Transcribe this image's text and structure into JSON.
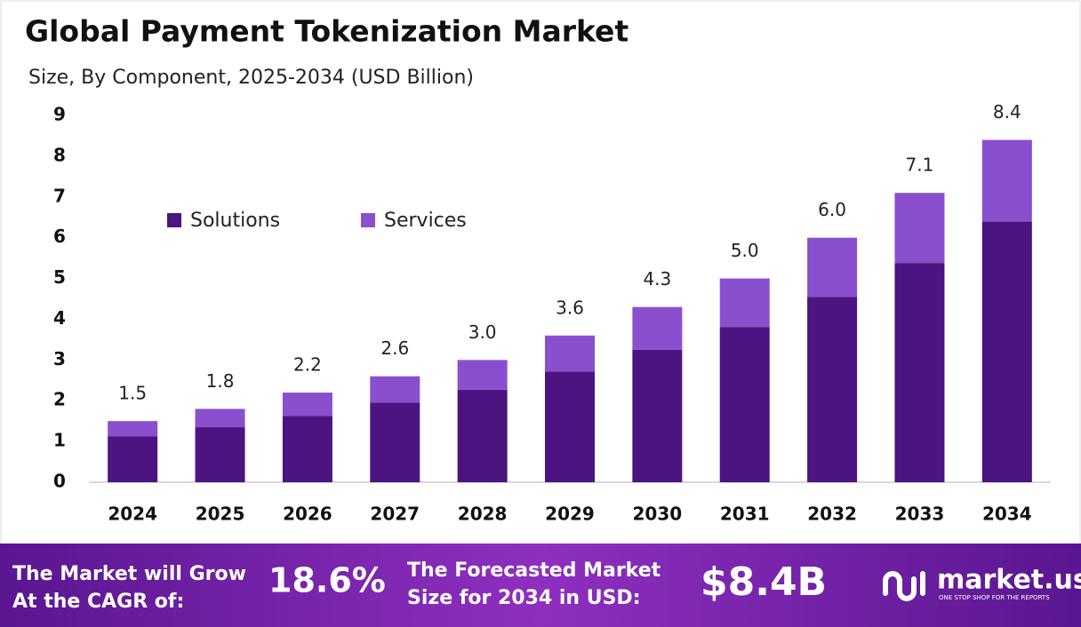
{
  "chart_data": {
    "type": "stacked-bar",
    "title": "Global Payment Tokenization Market",
    "subtitle": "Size, By Component, 2025-2034 (USD Billion)",
    "categories": [
      "2024",
      "2025",
      "2026",
      "2027",
      "2028",
      "2029",
      "2030",
      "2031",
      "2032",
      "2033",
      "2034"
    ],
    "series": [
      {
        "name": "Solutions",
        "color": "#4b1480",
        "values": [
          1.13,
          1.35,
          1.63,
          1.95,
          2.27,
          2.72,
          3.25,
          3.81,
          4.55,
          5.38,
          6.4
        ]
      },
      {
        "name": "Services",
        "color": "#8a4fcf",
        "values": [
          0.37,
          0.45,
          0.57,
          0.65,
          0.73,
          0.88,
          1.05,
          1.19,
          1.45,
          1.72,
          2.0
        ]
      }
    ],
    "totals": [
      1.5,
      1.8,
      2.2,
      2.6,
      3.0,
      3.6,
      4.3,
      5.0,
      6.0,
      7.1,
      8.4
    ],
    "value_labels": [
      "1.5",
      "1.8",
      "2.2",
      "2.6",
      "3.0",
      "3.6",
      "4.3",
      "5.0",
      "6.0",
      "7.1",
      "8.4"
    ],
    "ylim": [
      0,
      9
    ],
    "yticks": [
      0,
      1,
      2,
      3,
      4,
      5,
      6,
      7,
      8,
      9
    ],
    "grid": false
  },
  "footer": {
    "cagr_label": [
      "The Market will Grow",
      "At the CAGR of:"
    ],
    "cagr": "18.6%",
    "forecast_label": [
      "The Forecasted Market",
      "Size for 2034 in USD:"
    ],
    "forecast": "$8.4B",
    "logo": "market.us",
    "tagline": "ONE STOP SHOP FOR THE REPORTS"
  }
}
